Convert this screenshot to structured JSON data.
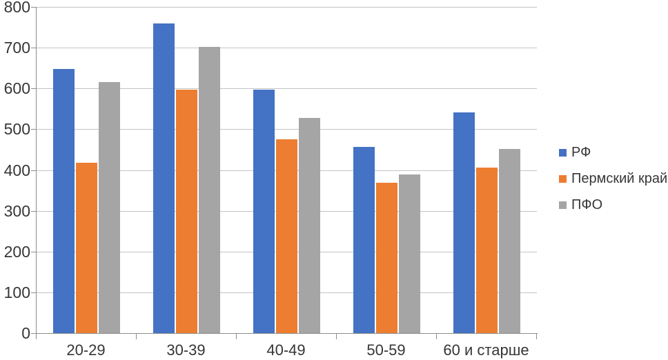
{
  "chart_data": {
    "type": "bar",
    "title": "",
    "xlabel": "",
    "ylabel": "",
    "categories": [
      "20-29",
      "30-39",
      "40-49",
      "50-59",
      "60 и старше"
    ],
    "series": [
      {
        "name": "РФ",
        "color": "#4472C4",
        "values": [
          647,
          760,
          597,
          457,
          542
        ]
      },
      {
        "name": "Пермский край",
        "color": "#ED7D31",
        "values": [
          418,
          597,
          476,
          369,
          406
        ]
      },
      {
        "name": "ПФО",
        "color": "#A5A5A5",
        "values": [
          615,
          702,
          527,
          389,
          452
        ]
      }
    ],
    "ylim": [
      0,
      800
    ],
    "ytick_step": 100,
    "ytick_labels": [
      "0",
      "100",
      "200",
      "300",
      "400",
      "500",
      "600",
      "700",
      "800"
    ],
    "grid": true,
    "legend_position": "right"
  },
  "colors": {
    "series_blue": "#4472C4",
    "series_orange": "#ED7D31",
    "series_gray": "#A5A5A5",
    "gridline": "#C3C3C3",
    "axis": "#8C8C8C",
    "text": "#363636",
    "background": "#FFFFFF"
  }
}
